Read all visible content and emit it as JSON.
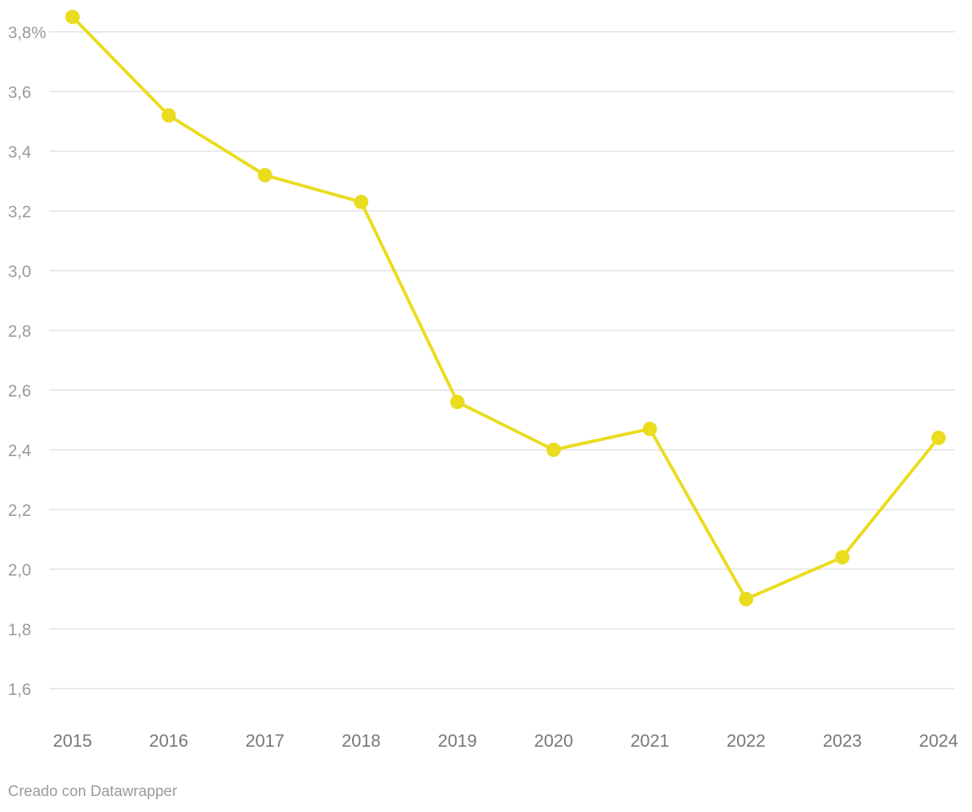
{
  "chart_data": {
    "type": "line",
    "title": "",
    "xlabel": "",
    "ylabel": "",
    "x": [
      "2015",
      "2016",
      "2017",
      "2018",
      "2019",
      "2020",
      "2021",
      "2022",
      "2023",
      "2024"
    ],
    "series": [
      {
        "values": [
          3.85,
          3.52,
          3.32,
          3.23,
          2.56,
          2.4,
          2.47,
          1.9,
          2.04,
          2.44
        ],
        "color": "#eadc1e"
      }
    ],
    "ylim": [
      1.6,
      3.8
    ],
    "yticks": [
      1.6,
      1.8,
      2.0,
      2.2,
      2.4,
      2.6,
      2.8,
      3.0,
      3.2,
      3.4,
      3.6,
      3.8
    ],
    "ytick_labels": [
      "1,6",
      "1,8",
      "2,0",
      "2,2",
      "2,4",
      "2,6",
      "2,8",
      "3,0",
      "3,2",
      "3,4",
      "3,6",
      "3,8%"
    ],
    "grid": true,
    "legend": "none"
  },
  "footer": {
    "credit": "Creado con Datawrapper"
  }
}
